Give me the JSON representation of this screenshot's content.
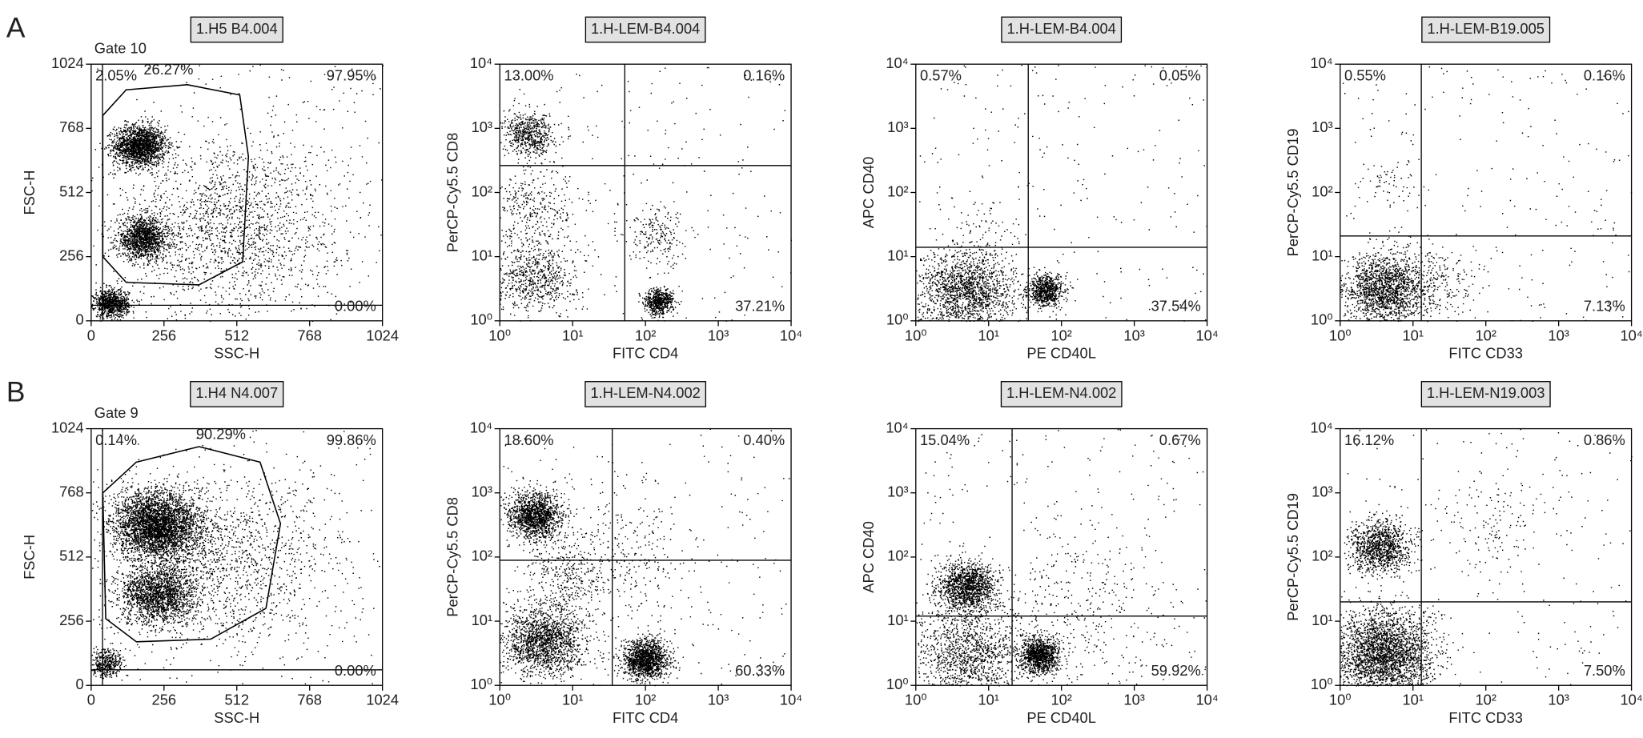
{
  "panel_labels": [
    "A",
    "B"
  ],
  "chart_data": [
    {
      "type": "scatter",
      "title": "1.H5 B4.004",
      "xlabel": "SSC-H",
      "ylabel": "FSC-H",
      "log": false,
      "xlim": [
        0,
        1024
      ],
      "ylim": [
        0,
        1024
      ],
      "xticks": [
        0,
        256,
        512,
        768,
        1024
      ],
      "yticks": [
        0,
        256,
        512,
        768,
        1024
      ],
      "quadrant": {
        "x": 40,
        "y": 62
      },
      "quadrant_labels": {
        "upper_left": "2.05%",
        "upper_right": "97.95%",
        "lower_right": "0.00%"
      },
      "gate": {
        "name": "Gate 10",
        "percent": "26.27%"
      },
      "clusters": [
        {
          "x": 170,
          "y": 700,
          "sd": 45,
          "n": 1800
        },
        {
          "x": 180,
          "y": 330,
          "sd": 45,
          "n": 1300
        },
        {
          "x": 70,
          "y": 70,
          "sd": 30,
          "n": 900
        },
        {
          "x": 480,
          "y": 380,
          "sd": 200,
          "n": 1800
        }
      ]
    },
    {
      "type": "scatter",
      "title": "1.H-LEM-B4.004",
      "xlabel": "FITC CD4",
      "ylabel": "PerCP-Cy5.5 CD8",
      "log": true,
      "xlim": [
        1,
        10000
      ],
      "ylim": [
        1,
        10000
      ],
      "xticks": [
        {
          "value": 1,
          "label": "10⁰"
        },
        {
          "value": 10,
          "label": "10¹"
        },
        {
          "value": 100,
          "label": "10²"
        },
        {
          "value": 1000,
          "label": "10³"
        },
        {
          "value": 10000,
          "label": "10⁴"
        }
      ],
      "yticks": [
        {
          "value": 1,
          "label": "10⁰"
        },
        {
          "value": 10,
          "label": "10¹"
        },
        {
          "value": 100,
          "label": "10²"
        },
        {
          "value": 1000,
          "label": "10³"
        },
        {
          "value": 10000,
          "label": "10⁴"
        }
      ],
      "quadrant": {
        "x": 52,
        "y": 263
      },
      "quadrant_labels": {
        "upper_left": "13.00%",
        "upper_right": "0.16%",
        "lower_right": "37.21%"
      },
      "clusters": [
        {
          "x": 2.5,
          "y": 800,
          "sd": 0.17,
          "n": 600
        },
        {
          "x": 3,
          "y": 5,
          "sd": 0.28,
          "n": 700
        },
        {
          "x": 3,
          "y": 60,
          "sd": 0.3,
          "n": 300
        },
        {
          "x": 150,
          "y": 2,
          "sd": 0.1,
          "n": 600
        },
        {
          "x": 150,
          "y": 20,
          "sd": 0.22,
          "n": 200
        }
      ]
    },
    {
      "type": "scatter",
      "title": "1.H-LEM-B4.004",
      "xlabel": "PE CD40L",
      "ylabel": "APC CD40",
      "log": true,
      "xlim": [
        1,
        10000
      ],
      "ylim": [
        1,
        10000
      ],
      "xticks": [
        {
          "value": 1,
          "label": "10⁰"
        },
        {
          "value": 10,
          "label": "10¹"
        },
        {
          "value": 100,
          "label": "10²"
        },
        {
          "value": 1000,
          "label": "10³"
        },
        {
          "value": 10000,
          "label": "10⁴"
        }
      ],
      "yticks": [
        {
          "value": 1,
          "label": "10⁰"
        },
        {
          "value": 10,
          "label": "10¹"
        },
        {
          "value": 100,
          "label": "10²"
        },
        {
          "value": 1000,
          "label": "10³"
        },
        {
          "value": 10000,
          "label": "10⁴"
        }
      ],
      "quadrant": {
        "x": 35,
        "y": 14
      },
      "quadrant_labels": {
        "upper_left": "0.57%",
        "upper_right": "0.05%",
        "lower_right": "37.54%"
      },
      "clusters": [
        {
          "x": 5,
          "y": 3,
          "sd": 0.33,
          "n": 1700
        },
        {
          "x": 60,
          "y": 3,
          "sd": 0.12,
          "n": 700
        },
        {
          "x": 10,
          "y": 30,
          "sd": 0.3,
          "n": 60
        }
      ]
    },
    {
      "type": "scatter",
      "title": "1.H-LEM-B19.005",
      "xlabel": "FITC CD33",
      "ylabel": "PerCP-Cy5.5 CD19",
      "log": true,
      "xlim": [
        1,
        10000
      ],
      "ylim": [
        1,
        10000
      ],
      "xticks": [
        {
          "value": 1,
          "label": "10⁰"
        },
        {
          "value": 10,
          "label": "10¹"
        },
        {
          "value": 100,
          "label": "10²"
        },
        {
          "value": 1000,
          "label": "10³"
        },
        {
          "value": 10000,
          "label": "10⁴"
        }
      ],
      "yticks": [
        {
          "value": 1,
          "label": "10⁰"
        },
        {
          "value": 10,
          "label": "10¹"
        },
        {
          "value": 100,
          "label": "10²"
        },
        {
          "value": 1000,
          "label": "10³"
        },
        {
          "value": 10000,
          "label": "10⁴"
        }
      ],
      "quadrant": {
        "x": 13,
        "y": 21
      },
      "quadrant_labels": {
        "upper_left": "0.55%",
        "upper_right": "0.16%",
        "lower_right": "7.13%"
      },
      "clusters": [
        {
          "x": 4,
          "y": 3,
          "sd": 0.28,
          "n": 1700
        },
        {
          "x": 5,
          "y": 150,
          "sd": 0.2,
          "n": 60
        },
        {
          "x": 20,
          "y": 4,
          "sd": 0.3,
          "n": 250
        }
      ]
    },
    {
      "type": "scatter",
      "title": "1.H4 N4.007",
      "xlabel": "SSC-H",
      "ylabel": "FSC-H",
      "log": false,
      "xlim": [
        0,
        1024
      ],
      "ylim": [
        0,
        1024
      ],
      "xticks": [
        0,
        256,
        512,
        768,
        1024
      ],
      "yticks": [
        0,
        256,
        512,
        768,
        1024
      ],
      "quadrant": {
        "x": 40,
        "y": 62
      },
      "quadrant_labels": {
        "upper_left": "0.14%",
        "upper_right": "99.86%",
        "lower_right": "0.00%"
      },
      "gate": {
        "name": "Gate 9",
        "percent": "90.29%"
      },
      "clusters": [
        {
          "x": 230,
          "y": 640,
          "sd": 75,
          "n": 3500
        },
        {
          "x": 230,
          "y": 360,
          "sd": 65,
          "n": 1800
        },
        {
          "x": 450,
          "y": 500,
          "sd": 190,
          "n": 1500
        },
        {
          "x": 50,
          "y": 90,
          "sd": 30,
          "n": 400
        }
      ]
    },
    {
      "type": "scatter",
      "title": "1.H-LEM-N4.002",
      "xlabel": "FITC CD4",
      "ylabel": "PerCP-Cy5.5 CD8",
      "log": true,
      "xlim": [
        1,
        10000
      ],
      "ylim": [
        1,
        10000
      ],
      "xticks": [
        {
          "value": 1,
          "label": "10⁰"
        },
        {
          "value": 10,
          "label": "10¹"
        },
        {
          "value": 100,
          "label": "10²"
        },
        {
          "value": 1000,
          "label": "10³"
        },
        {
          "value": 10000,
          "label": "10⁴"
        }
      ],
      "yticks": [
        {
          "value": 1,
          "label": "10⁰"
        },
        {
          "value": 10,
          "label": "10¹"
        },
        {
          "value": 100,
          "label": "10²"
        },
        {
          "value": 1000,
          "label": "10³"
        },
        {
          "value": 10000,
          "label": "10⁴"
        }
      ],
      "quadrant": {
        "x": 35,
        "y": 89
      },
      "quadrant_labels": {
        "upper_left": "18.60%",
        "upper_right": "0.40%",
        "lower_right": "60.33%"
      },
      "clusters": [
        {
          "x": 3,
          "y": 450,
          "sd": 0.18,
          "n": 1400
        },
        {
          "x": 4,
          "y": 5,
          "sd": 0.28,
          "n": 1700
        },
        {
          "x": 100,
          "y": 2.5,
          "sd": 0.15,
          "n": 1400
        },
        {
          "x": 50,
          "y": 100,
          "sd": 0.5,
          "n": 300
        },
        {
          "x": 8,
          "y": 50,
          "sd": 0.3,
          "n": 300
        }
      ]
    },
    {
      "type": "scatter",
      "title": "1.H-LEM-N4.002",
      "xlabel": "PE CD40L",
      "ylabel": "APC CD40",
      "log": true,
      "xlim": [
        1,
        10000
      ],
      "ylim": [
        1,
        10000
      ],
      "xticks": [
        {
          "value": 1,
          "label": "10⁰"
        },
        {
          "value": 10,
          "label": "10¹"
        },
        {
          "value": 100,
          "label": "10²"
        },
        {
          "value": 1000,
          "label": "10³"
        },
        {
          "value": 10000,
          "label": "10⁴"
        }
      ],
      "yticks": [
        {
          "value": 1,
          "label": "10⁰"
        },
        {
          "value": 10,
          "label": "10¹"
        },
        {
          "value": 100,
          "label": "10²"
        },
        {
          "value": 1000,
          "label": "10³"
        },
        {
          "value": 10000,
          "label": "10⁴"
        }
      ],
      "quadrant": {
        "x": 21,
        "y": 12
      },
      "quadrant_labels": {
        "upper_left": "15.04%",
        "upper_right": "0.67%",
        "lower_right": "59.92%"
      },
      "clusters": [
        {
          "x": 5,
          "y": 35,
          "sd": 0.2,
          "n": 1400
        },
        {
          "x": 50,
          "y": 3,
          "sd": 0.14,
          "n": 1100
        },
        {
          "x": 5,
          "y": 3,
          "sd": 0.38,
          "n": 1300
        },
        {
          "x": 200,
          "y": 15,
          "sd": 0.6,
          "n": 350
        }
      ]
    },
    {
      "type": "scatter",
      "title": "1.H-LEM-N19.003",
      "xlabel": "FITC CD33",
      "ylabel": "PerCP-Cy5.5 CD19",
      "log": true,
      "xlim": [
        1,
        10000
      ],
      "ylim": [
        1,
        10000
      ],
      "xticks": [
        {
          "value": 1,
          "label": "10⁰"
        },
        {
          "value": 10,
          "label": "10¹"
        },
        {
          "value": 100,
          "label": "10²"
        },
        {
          "value": 1000,
          "label": "10³"
        },
        {
          "value": 10000,
          "label": "10⁴"
        }
      ],
      "yticks": [
        {
          "value": 1,
          "label": "10⁰"
        },
        {
          "value": 10,
          "label": "10¹"
        },
        {
          "value": 100,
          "label": "10²"
        },
        {
          "value": 1000,
          "label": "10³"
        },
        {
          "value": 10000,
          "label": "10⁴"
        }
      ],
      "quadrant": {
        "x": 13,
        "y": 20
      },
      "quadrant_labels": {
        "upper_left": "16.12%",
        "upper_right": "0.86%",
        "lower_right": "7.50%"
      },
      "clusters": [
        {
          "x": 3.5,
          "y": 150,
          "sd": 0.2,
          "n": 1100
        },
        {
          "x": 4,
          "y": 3,
          "sd": 0.33,
          "n": 2800
        },
        {
          "x": 100,
          "y": 300,
          "sd": 0.4,
          "n": 120
        }
      ]
    }
  ]
}
